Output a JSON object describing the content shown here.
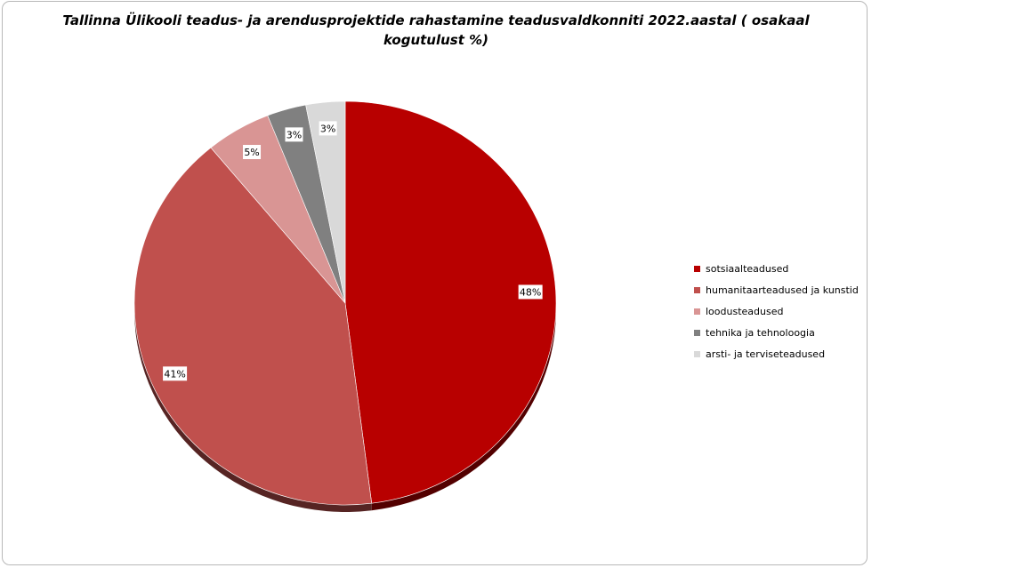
{
  "chart_data": {
    "type": "pie",
    "title": "Tallinna Ülikooli teadus- ja arendusprojektide rahastamine teadusvaldkonniti 2022.aastal ( osakaal kogutulust %)",
    "slices": [
      {
        "name": "sotsiaalteadused",
        "value": 48,
        "label": "48%",
        "color": "#b80000"
      },
      {
        "name": "humanitaarteadused ja kunstid",
        "value": 41,
        "label": "41%",
        "color": "#c0504d"
      },
      {
        "name": "loodusteadused",
        "value": 5,
        "label": "5%",
        "color": "#d99594"
      },
      {
        "name": "tehnika ja tehnoloogia",
        "value": 3,
        "label": "3%",
        "color": "#808080"
      },
      {
        "name": "arsti- ja terviseteadused",
        "value": 3,
        "label": "3%",
        "color": "#d9d9d9"
      }
    ],
    "legend_position": "right"
  }
}
